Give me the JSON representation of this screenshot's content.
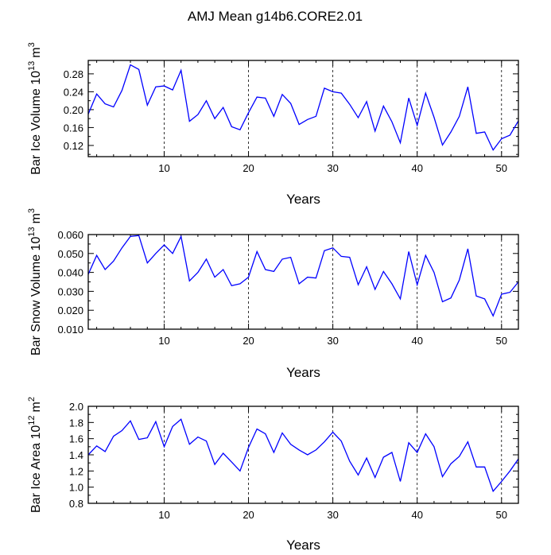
{
  "figure_title": "AMJ Mean g14b6.CORE2.01",
  "chart_data": [
    {
      "type": "line",
      "ylabel_main": "Bar Ice Volume 10",
      "ylabel_exp": "13",
      "ylabel_unit": "m",
      "ylabel_unit_exp": "3",
      "xlabel": "Years",
      "xlim": [
        1,
        52
      ],
      "ylim": [
        0.095,
        0.31
      ],
      "yticks": [
        "0.12",
        "0.16",
        "0.20",
        "0.24",
        "0.28"
      ],
      "xticks": [
        "10",
        "20",
        "30",
        "40",
        "50"
      ],
      "x_gridlines": [
        10,
        20,
        30,
        40,
        50
      ],
      "x": [
        1,
        2,
        3,
        4,
        5,
        6,
        7,
        8,
        9,
        10,
        11,
        12,
        13,
        14,
        15,
        16,
        17,
        18,
        19,
        20,
        21,
        22,
        23,
        24,
        25,
        26,
        27,
        28,
        29,
        30,
        31,
        32,
        33,
        34,
        35,
        36,
        37,
        38,
        39,
        40,
        41,
        42,
        43,
        44,
        45,
        46,
        47,
        48,
        49,
        50,
        51,
        52
      ],
      "values": [
        0.19,
        0.235,
        0.213,
        0.206,
        0.243,
        0.3,
        0.29,
        0.21,
        0.251,
        0.253,
        0.244,
        0.288,
        0.174,
        0.189,
        0.22,
        0.18,
        0.205,
        0.162,
        0.155,
        0.193,
        0.228,
        0.226,
        0.185,
        0.234,
        0.214,
        0.167,
        0.178,
        0.185,
        0.248,
        0.24,
        0.237,
        0.212,
        0.182,
        0.218,
        0.152,
        0.208,
        0.173,
        0.126,
        0.226,
        0.165,
        0.237,
        0.183,
        0.121,
        0.15,
        0.185,
        0.251,
        0.147,
        0.15,
        0.11,
        0.135,
        0.143,
        0.175
      ]
    },
    {
      "type": "line",
      "ylabel_main": "Bar Snow Volume 10",
      "ylabel_exp": "13",
      "ylabel_unit": "m",
      "ylabel_unit_exp": "3",
      "xlabel": "Years",
      "xlim": [
        1,
        52
      ],
      "ylim": [
        0.01,
        0.06
      ],
      "yticks": [
        "0.010",
        "0.020",
        "0.030",
        "0.040",
        "0.050",
        "0.060"
      ],
      "xticks": [
        "10",
        "20",
        "30",
        "40",
        "50"
      ],
      "x_gridlines": [
        10,
        20,
        30,
        40,
        50
      ],
      "x": [
        1,
        2,
        3,
        4,
        5,
        6,
        7,
        8,
        9,
        10,
        11,
        12,
        13,
        14,
        15,
        16,
        17,
        18,
        19,
        20,
        21,
        22,
        23,
        24,
        25,
        26,
        27,
        28,
        29,
        30,
        31,
        32,
        33,
        34,
        35,
        36,
        37,
        38,
        39,
        40,
        41,
        42,
        43,
        44,
        45,
        46,
        47,
        48,
        49,
        50,
        51,
        52
      ],
      "values": [
        0.039,
        0.049,
        0.0415,
        0.046,
        0.053,
        0.059,
        0.0595,
        0.045,
        0.05,
        0.0545,
        0.05,
        0.059,
        0.0355,
        0.04,
        0.047,
        0.0375,
        0.0415,
        0.033,
        0.034,
        0.0375,
        0.051,
        0.0415,
        0.0405,
        0.047,
        0.048,
        0.034,
        0.0375,
        0.037,
        0.0515,
        0.053,
        0.0485,
        0.048,
        0.0335,
        0.043,
        0.031,
        0.0405,
        0.034,
        0.026,
        0.051,
        0.0335,
        0.049,
        0.04,
        0.0245,
        0.0265,
        0.036,
        0.0525,
        0.0275,
        0.026,
        0.017,
        0.0285,
        0.0295,
        0.035
      ]
    },
    {
      "type": "line",
      "ylabel_main": "Bar Ice Area 10",
      "ylabel_exp": "12",
      "ylabel_unit": "m",
      "ylabel_unit_exp": "2",
      "xlabel": "Years",
      "xlim": [
        1,
        52
      ],
      "ylim": [
        0.8,
        2.0
      ],
      "yticks": [
        "0.8",
        "1.0",
        "1.2",
        "1.4",
        "1.6",
        "1.8",
        "2.0"
      ],
      "xticks": [
        "10",
        "20",
        "30",
        "40",
        "50"
      ],
      "x_gridlines": [
        10,
        20,
        30,
        40,
        50
      ],
      "x": [
        1,
        2,
        3,
        4,
        5,
        6,
        7,
        8,
        9,
        10,
        11,
        12,
        13,
        14,
        15,
        16,
        17,
        18,
        19,
        20,
        21,
        22,
        23,
        24,
        25,
        26,
        27,
        28,
        29,
        30,
        31,
        32,
        33,
        34,
        35,
        36,
        37,
        38,
        39,
        40,
        41,
        42,
        43,
        44,
        45,
        46,
        47,
        48,
        49,
        50,
        51,
        52
      ],
      "values": [
        1.4,
        1.51,
        1.44,
        1.63,
        1.7,
        1.82,
        1.59,
        1.61,
        1.81,
        1.5,
        1.75,
        1.84,
        1.53,
        1.62,
        1.57,
        1.28,
        1.42,
        1.31,
        1.2,
        1.49,
        1.72,
        1.66,
        1.43,
        1.67,
        1.53,
        1.46,
        1.4,
        1.46,
        1.56,
        1.68,
        1.57,
        1.32,
        1.15,
        1.36,
        1.12,
        1.37,
        1.43,
        1.07,
        1.55,
        1.43,
        1.66,
        1.5,
        1.13,
        1.29,
        1.38,
        1.56,
        1.25,
        1.25,
        0.95,
        1.07,
        1.2,
        1.35
      ]
    }
  ]
}
